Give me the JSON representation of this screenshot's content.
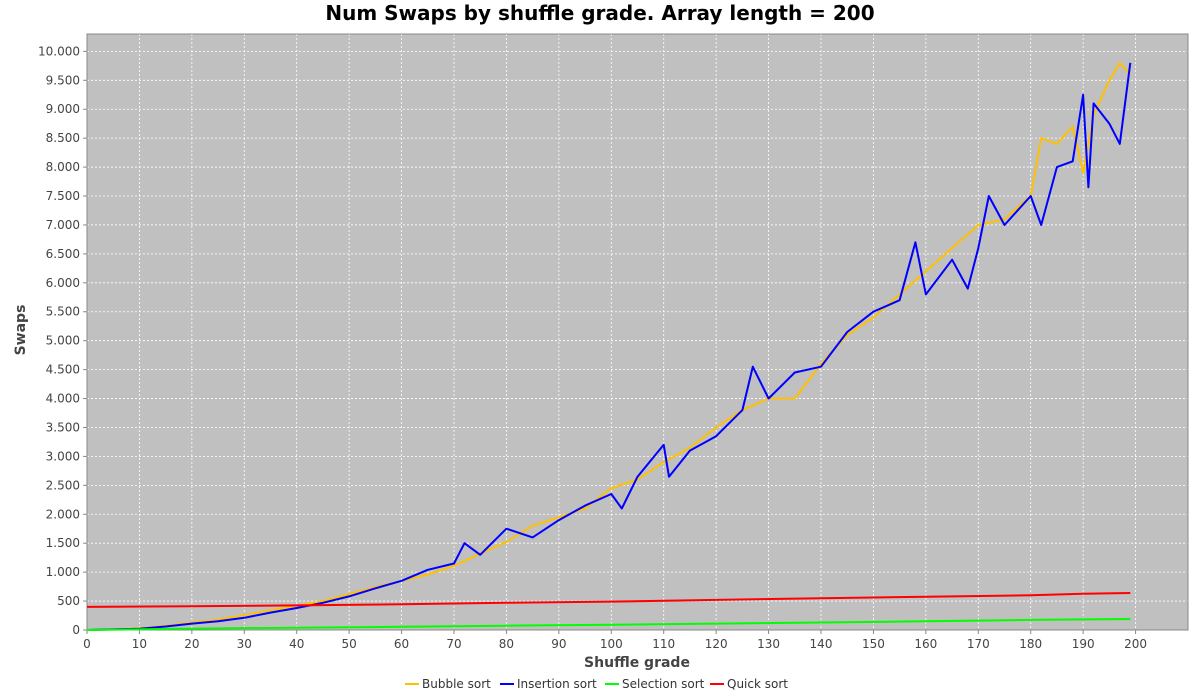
{
  "chart_data": {
    "type": "line",
    "title": "Num Swaps by shuffle grade.  Array length = 200",
    "xlabel": "Shuffle grade",
    "ylabel": "Swaps",
    "xlim": [
      0,
      210
    ],
    "ylim": [
      0,
      10300
    ],
    "x_ticks": [
      0,
      10,
      20,
      30,
      40,
      50,
      60,
      70,
      80,
      90,
      100,
      110,
      120,
      130,
      140,
      150,
      160,
      170,
      180,
      190,
      200
    ],
    "y_ticks": [
      0,
      500,
      1000,
      1500,
      2000,
      2500,
      3000,
      3500,
      4000,
      4500,
      5000,
      5500,
      6000,
      6500,
      7000,
      7500,
      8000,
      8500,
      9000,
      9500,
      10000
    ],
    "y_tick_labels": [
      "0",
      "500",
      "1.000",
      "1.500",
      "2.000",
      "2.500",
      "3.000",
      "3.500",
      "4.000",
      "4.500",
      "5.000",
      "5.500",
      "6.000",
      "6.500",
      "7.000",
      "7.500",
      "8.000",
      "8.500",
      "9.000",
      "9.500",
      "10.000"
    ],
    "grid": true,
    "plot_background": "#c0c0c0",
    "legend_position": "bottom",
    "series": [
      {
        "name": "Bubble sort",
        "color": "#ffc000",
        "x": [
          0,
          5,
          10,
          15,
          20,
          25,
          30,
          35,
          40,
          45,
          50,
          55,
          60,
          65,
          70,
          75,
          80,
          85,
          90,
          95,
          100,
          105,
          110,
          115,
          120,
          125,
          130,
          135,
          140,
          145,
          150,
          155,
          160,
          165,
          170,
          175,
          180,
          182,
          185,
          188,
          190,
          192,
          195,
          197,
          199
        ],
        "y": [
          0,
          10,
          30,
          70,
          130,
          180,
          260,
          340,
          420,
          500,
          620,
          740,
          850,
          960,
          1110,
          1320,
          1520,
          1800,
          1950,
          2100,
          2450,
          2600,
          2900,
          3150,
          3500,
          3800,
          4000,
          4000,
          4600,
          5100,
          5400,
          5800,
          6200,
          6600,
          7000,
          7100,
          7500,
          8500,
          8400,
          8700,
          7900,
          8900,
          9500,
          9800,
          9600
        ]
      },
      {
        "name": "Insertion sort",
        "color": "#0000ff",
        "x": [
          0,
          5,
          10,
          15,
          20,
          25,
          30,
          35,
          40,
          45,
          50,
          55,
          60,
          65,
          70,
          72,
          75,
          80,
          85,
          90,
          95,
          100,
          102,
          105,
          110,
          111,
          115,
          120,
          125,
          127,
          130,
          135,
          140,
          145,
          150,
          155,
          158,
          160,
          165,
          168,
          170,
          172,
          175,
          180,
          182,
          185,
          188,
          190,
          191,
          192,
          195,
          197,
          199
        ],
        "y": [
          0,
          10,
          20,
          60,
          110,
          150,
          210,
          300,
          380,
          470,
          580,
          720,
          850,
          1040,
          1150,
          1500,
          1300,
          1750,
          1600,
          1900,
          2150,
          2350,
          2100,
          2650,
          3200,
          2650,
          3100,
          3350,
          3800,
          4550,
          4000,
          4450,
          4550,
          5150,
          5500,
          5700,
          6700,
          5800,
          6400,
          5900,
          6600,
          7500,
          7000,
          7500,
          7000,
          8000,
          8100,
          9250,
          7650,
          9100,
          8750,
          8400,
          9800
        ]
      },
      {
        "name": "Selection sort",
        "color": "#00ff00",
        "x": [
          0,
          20,
          40,
          60,
          80,
          100,
          120,
          140,
          160,
          180,
          199
        ],
        "y": [
          0,
          25,
          40,
          55,
          75,
          90,
          110,
          130,
          150,
          175,
          190
        ]
      },
      {
        "name": "Quick sort",
        "color": "#ff0000",
        "x": [
          0,
          20,
          40,
          60,
          80,
          100,
          120,
          140,
          160,
          180,
          190,
          199
        ],
        "y": [
          400,
          410,
          425,
          445,
          470,
          490,
          520,
          550,
          575,
          600,
          625,
          640
        ]
      }
    ]
  }
}
